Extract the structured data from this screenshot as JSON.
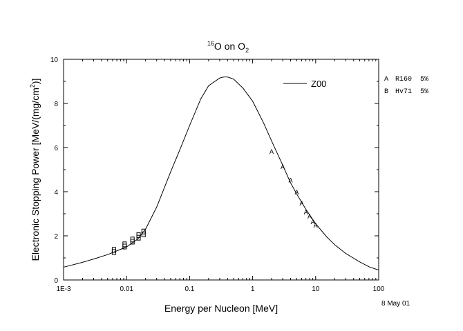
{
  "chart_data": {
    "type": "line",
    "title": {
      "mass": "16",
      "ion": "O on O",
      "target_sub": "2"
    },
    "xlabel": "Energy per Nucleon [MeV]",
    "ylabel": {
      "main": "Electronic Stopping Power [MeV/(mg/cm",
      "sup": "2",
      "close": ")]"
    },
    "x_scale": "log",
    "xlim": [
      0.001,
      100
    ],
    "ylim": [
      0,
      10
    ],
    "x_ticks": [
      {
        "value": 0.001,
        "label": "1E-3"
      },
      {
        "value": 0.01,
        "label": "0.01"
      },
      {
        "value": 0.1,
        "label": "0.1"
      },
      {
        "value": 1,
        "label": "1"
      },
      {
        "value": 10,
        "label": "10"
      },
      {
        "value": 100,
        "label": "100"
      }
    ],
    "y_ticks": [
      {
        "value": 0,
        "label": "0"
      },
      {
        "value": 2,
        "label": "2"
      },
      {
        "value": 4,
        "label": "4"
      },
      {
        "value": 6,
        "label": "6"
      },
      {
        "value": 8,
        "label": "8"
      },
      {
        "value": 10,
        "label": "10"
      }
    ],
    "grid": false,
    "legend": {
      "placement": "top-right",
      "line_label": "Z00"
    },
    "side_legend": [
      {
        "marker": "A",
        "text": "R160  5%"
      },
      {
        "marker": "B",
        "text": "Hv71  5%"
      }
    ],
    "date": "8 May 01",
    "series": [
      {
        "name": "Z00",
        "style": "line",
        "color": "#000000",
        "points": [
          [
            0.001,
            0.58
          ],
          [
            0.002,
            0.8
          ],
          [
            0.003,
            0.95
          ],
          [
            0.005,
            1.15
          ],
          [
            0.007,
            1.32
          ],
          [
            0.01,
            1.5
          ],
          [
            0.015,
            1.85
          ],
          [
            0.02,
            2.3
          ],
          [
            0.03,
            3.3
          ],
          [
            0.05,
            4.9
          ],
          [
            0.07,
            5.9
          ],
          [
            0.1,
            7.0
          ],
          [
            0.15,
            8.2
          ],
          [
            0.2,
            8.8
          ],
          [
            0.3,
            9.15
          ],
          [
            0.35,
            9.2
          ],
          [
            0.4,
            9.2
          ],
          [
            0.5,
            9.1
          ],
          [
            0.7,
            8.7
          ],
          [
            1,
            8.1
          ],
          [
            1.5,
            7.1
          ],
          [
            2,
            6.3
          ],
          [
            3,
            5.2
          ],
          [
            4,
            4.4
          ],
          [
            5,
            3.9
          ],
          [
            7,
            3.2
          ],
          [
            10,
            2.55
          ],
          [
            15,
            1.95
          ],
          [
            20,
            1.6
          ],
          [
            30,
            1.2
          ],
          [
            50,
            0.82
          ],
          [
            70,
            0.6
          ],
          [
            100,
            0.45
          ]
        ]
      },
      {
        "name": "A",
        "style": "marker",
        "marker": "A",
        "points": [
          [
            2.0,
            5.85
          ],
          [
            3.0,
            5.15
          ],
          [
            4.0,
            4.55
          ],
          [
            5.0,
            4.0
          ],
          [
            6.0,
            3.5
          ],
          [
            7.0,
            3.1
          ],
          [
            8.0,
            2.9
          ],
          [
            9.0,
            2.65
          ],
          [
            10.0,
            2.5
          ]
        ]
      },
      {
        "name": "B",
        "style": "marker",
        "marker": "box",
        "points": [
          [
            0.0063,
            1.25
          ],
          [
            0.0063,
            1.35
          ],
          [
            0.0093,
            1.5
          ],
          [
            0.0093,
            1.6
          ],
          [
            0.0124,
            1.72
          ],
          [
            0.0124,
            1.82
          ],
          [
            0.0155,
            1.9
          ],
          [
            0.0155,
            2.02
          ],
          [
            0.0186,
            2.05
          ],
          [
            0.0186,
            2.18
          ]
        ]
      }
    ]
  }
}
